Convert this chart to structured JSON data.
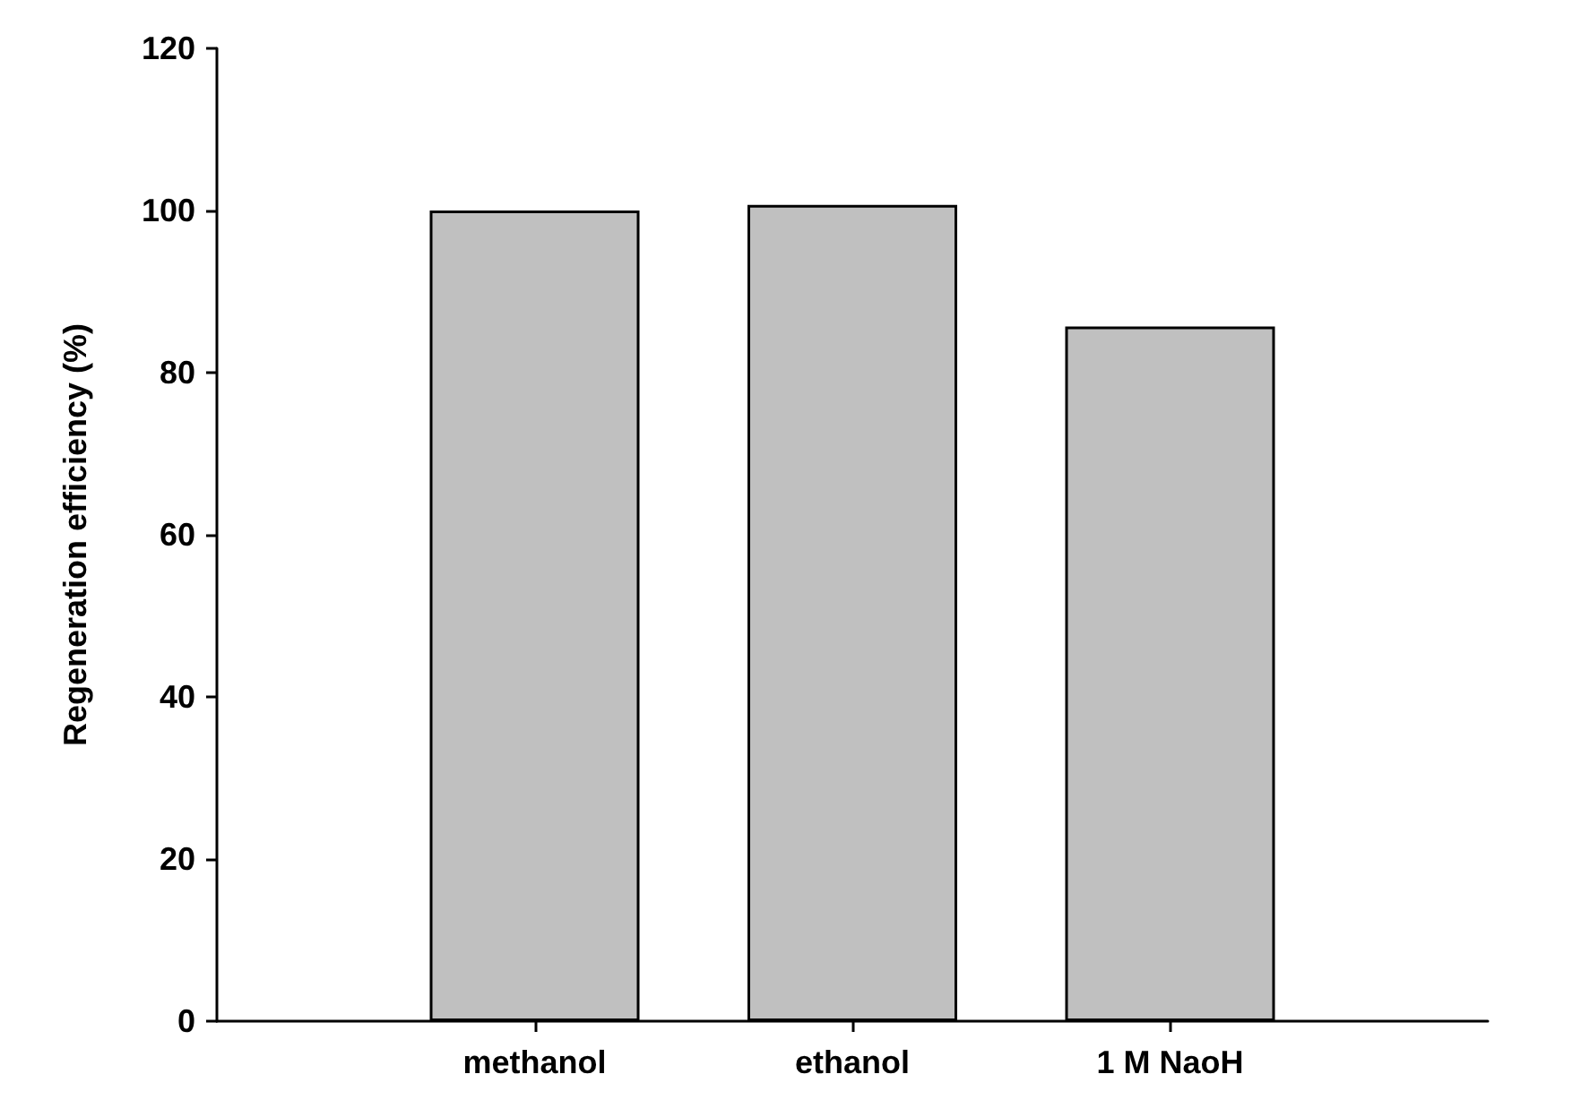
{
  "chart_data": {
    "type": "bar",
    "ylabel": "Regeneration efficiency (%)",
    "categories": [
      "methanol",
      "ethanol",
      "1 M NaoH"
    ],
    "values": [
      100,
      100.7,
      85.7
    ],
    "color": "#c0c0c0",
    "ylim": [
      0,
      120
    ],
    "yticks": [
      0,
      20,
      40,
      60,
      80,
      100,
      120
    ],
    "grid": false
  }
}
